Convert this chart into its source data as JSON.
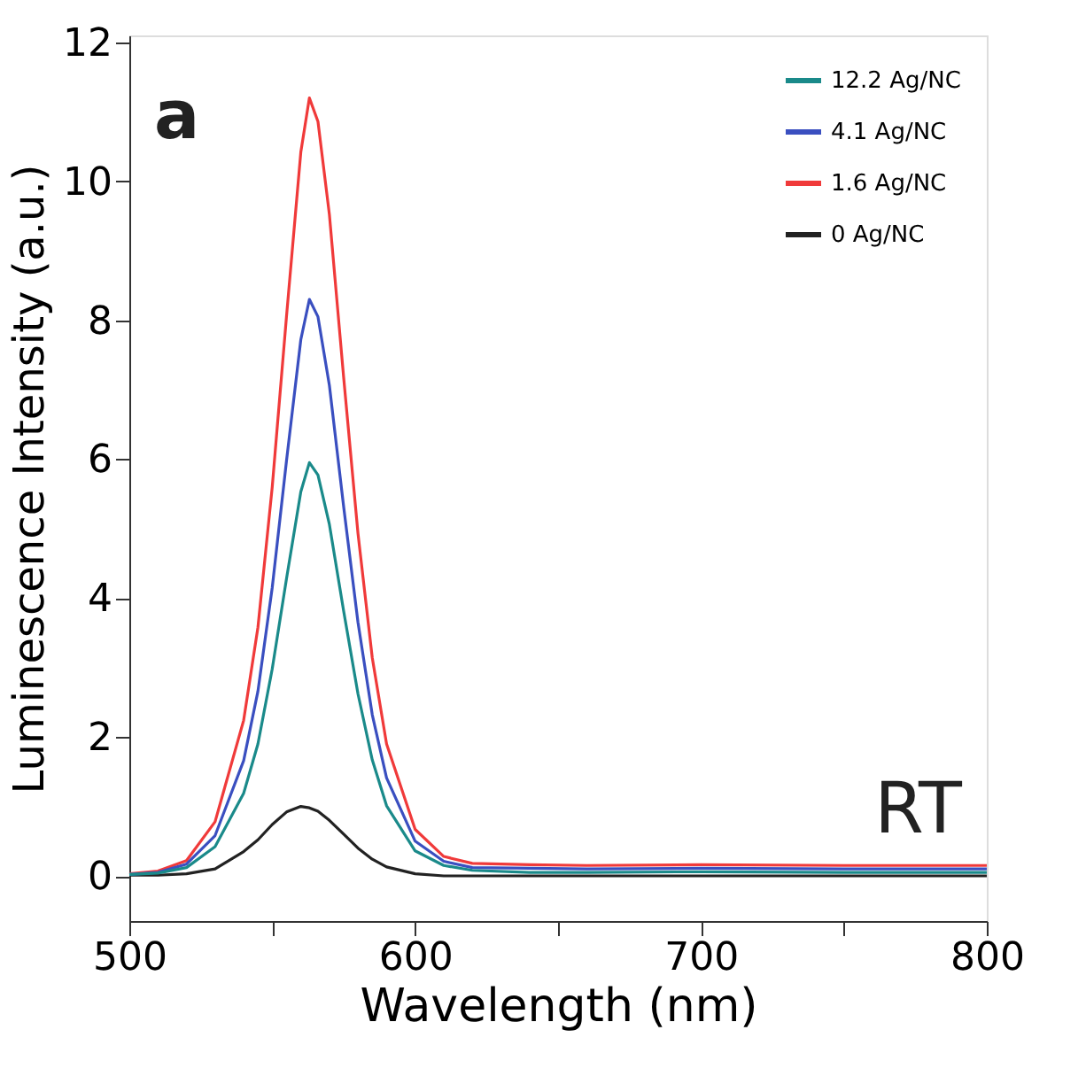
{
  "chart_data": {
    "type": "line",
    "xlabel": "Wavelength (nm)",
    "ylabel": "Luminescence Intensity (a.u.)",
    "annotations": [
      "a",
      "RT"
    ],
    "x": [
      500,
      510,
      520,
      530,
      540,
      545,
      550,
      555,
      560,
      563,
      566,
      570,
      575,
      580,
      585,
      590,
      600,
      610,
      620,
      640,
      660,
      700,
      750,
      800
    ],
    "series": [
      {
        "name": "12.2 Ag/NC",
        "color": "#1a8a8a",
        "values": [
          0.02,
          0.04,
          0.12,
          0.42,
          1.19,
          1.9,
          2.98,
          4.28,
          5.53,
          5.95,
          5.77,
          5.06,
          3.81,
          2.62,
          1.67,
          1.01,
          0.36,
          0.15,
          0.08,
          0.05,
          0.05,
          0.06,
          0.05,
          0.05
        ]
      },
      {
        "name": "4.1 Ag/NC",
        "color": "#3a4fc0",
        "values": [
          0.02,
          0.05,
          0.17,
          0.58,
          1.66,
          2.66,
          4.15,
          5.98,
          7.72,
          8.3,
          8.05,
          7.06,
          5.31,
          3.65,
          2.32,
          1.41,
          0.5,
          0.21,
          0.12,
          0.11,
          0.1,
          0.11,
          0.1,
          0.1
        ]
      },
      {
        "name": "1.6 Ag/NC",
        "color": "#f03a3a",
        "values": [
          0.03,
          0.07,
          0.22,
          0.78,
          2.24,
          3.58,
          5.6,
          8.06,
          10.42,
          11.2,
          10.86,
          9.52,
          7.17,
          4.93,
          3.14,
          1.9,
          0.67,
          0.28,
          0.18,
          0.16,
          0.15,
          0.16,
          0.15,
          0.15
        ]
      },
      {
        "name": "0 Ag/NC",
        "color": "#222222",
        "values": [
          0.01,
          0.01,
          0.03,
          0.1,
          0.35,
          0.52,
          0.74,
          0.92,
          1.0,
          0.98,
          0.93,
          0.8,
          0.6,
          0.4,
          0.24,
          0.13,
          0.03,
          0.0,
          0.0,
          0.0,
          0.0,
          0.0,
          0.0,
          0.0
        ]
      }
    ],
    "xlim": [
      500,
      800
    ],
    "ylim": [
      -0.65,
      12.1
    ],
    "xticks": [
      500,
      {
        "value": 550,
        "label": null
      },
      600,
      {
        "value": 650,
        "label": null
      },
      700,
      {
        "value": 750,
        "label": null
      },
      800
    ],
    "yticks": [
      0,
      2,
      4,
      6,
      8,
      10,
      12
    ],
    "grid": false,
    "legend": "top right",
    "line_style": "solid",
    "marker": "none"
  }
}
